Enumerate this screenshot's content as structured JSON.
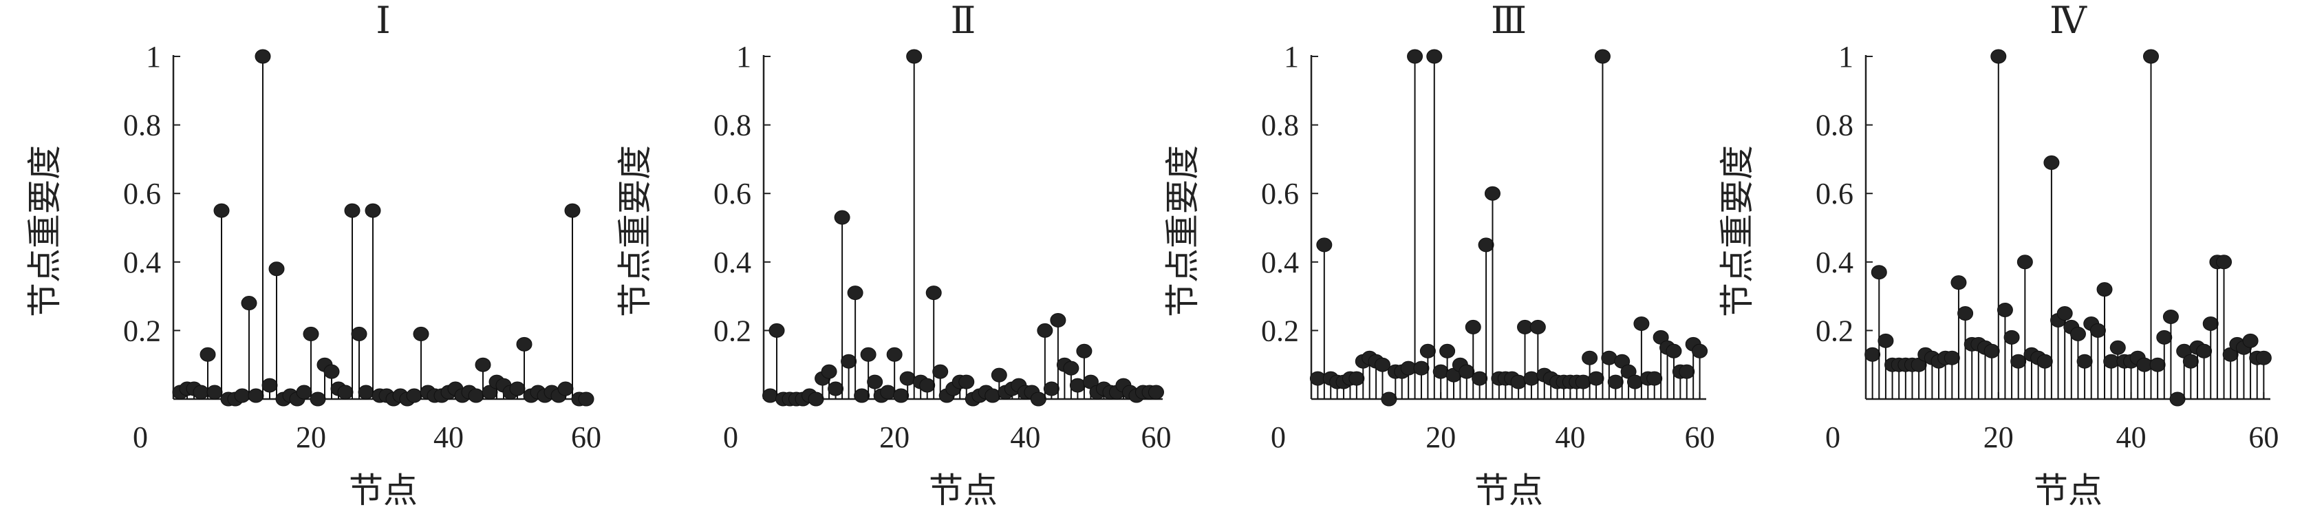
{
  "chart_data": [
    {
      "type": "stem",
      "title": "Ⅰ",
      "xlabel": "节点",
      "ylabel": "节点重要度",
      "xlim": [
        0,
        61
      ],
      "ylim": [
        0,
        1
      ],
      "xticks": [
        "0",
        "20",
        "40",
        "60"
      ],
      "yticks": [
        "0.2",
        "0.4",
        "0.6",
        "0.8",
        "1"
      ],
      "grid": false,
      "x": [
        1,
        2,
        3,
        4,
        5,
        6,
        7,
        8,
        9,
        10,
        11,
        12,
        13,
        14,
        15,
        16,
        17,
        18,
        19,
        20,
        21,
        22,
        23,
        24,
        25,
        26,
        27,
        28,
        29,
        30,
        31,
        32,
        33,
        34,
        35,
        36,
        37,
        38,
        39,
        40,
        41,
        42,
        43,
        44,
        45,
        46,
        47,
        48,
        49,
        50,
        51,
        52,
        53,
        54,
        55,
        56,
        57,
        58,
        59,
        60
      ],
      "values": [
        0.02,
        0.03,
        0.03,
        0.02,
        0.13,
        0.02,
        0.55,
        0,
        0,
        0.01,
        0.28,
        0.01,
        1.0,
        0.04,
        0.38,
        0,
        0.01,
        0,
        0.02,
        0.19,
        0,
        0.1,
        0.08,
        0.03,
        0.02,
        0.55,
        0.19,
        0.02,
        0.55,
        0.01,
        0.01,
        0,
        0.01,
        0,
        0.01,
        0.19,
        0.02,
        0.01,
        0.01,
        0.02,
        0.03,
        0.01,
        0.02,
        0.01,
        0.1,
        0.02,
        0.05,
        0.04,
        0.02,
        0.03,
        0.16,
        0.01,
        0.02,
        0.01,
        0.02,
        0.01,
        0.03,
        0.55,
        0,
        0
      ]
    },
    {
      "type": "stem",
      "title": "Ⅱ",
      "xlabel": "节点",
      "ylabel": "节点重要度",
      "xlim": [
        0,
        61
      ],
      "ylim": [
        0,
        1
      ],
      "xticks": [
        "0",
        "20",
        "40",
        "60"
      ],
      "yticks": [
        "0.2",
        "0.4",
        "0.6",
        "0.8",
        "1"
      ],
      "grid": false,
      "x": [
        1,
        2,
        3,
        4,
        5,
        6,
        7,
        8,
        9,
        10,
        11,
        12,
        13,
        14,
        15,
        16,
        17,
        18,
        19,
        20,
        21,
        22,
        23,
        24,
        25,
        26,
        27,
        28,
        29,
        30,
        31,
        32,
        33,
        34,
        35,
        36,
        37,
        38,
        39,
        40,
        41,
        42,
        43,
        44,
        45,
        46,
        47,
        48,
        49,
        50,
        51,
        52,
        53,
        54,
        55,
        56,
        57,
        58,
        59,
        60
      ],
      "values": [
        0.01,
        0.2,
        0,
        0,
        0,
        0,
        0.01,
        0,
        0.06,
        0.08,
        0.03,
        0.53,
        0.11,
        0.31,
        0.01,
        0.13,
        0.05,
        0.01,
        0.02,
        0.13,
        0.01,
        0.06,
        1.0,
        0.05,
        0.04,
        0.31,
        0.08,
        0.01,
        0.03,
        0.05,
        0.05,
        0,
        0.01,
        0.02,
        0.01,
        0.07,
        0.02,
        0.03,
        0.04,
        0.02,
        0.02,
        0,
        0.2,
        0.03,
        0.23,
        0.1,
        0.09,
        0.04,
        0.14,
        0.05,
        0.02,
        0.03,
        0.02,
        0.02,
        0.04,
        0.02,
        0.01,
        0.02,
        0.02,
        0.02
      ]
    },
    {
      "type": "stem",
      "title": "Ⅲ",
      "xlabel": "节点",
      "ylabel": "节点重要度",
      "xlim": [
        0,
        61
      ],
      "ylim": [
        0,
        1
      ],
      "xticks": [
        "0",
        "20",
        "40",
        "60"
      ],
      "yticks": [
        "0.2",
        "0.4",
        "0.6",
        "0.8",
        "1"
      ],
      "grid": false,
      "x": [
        1,
        2,
        3,
        4,
        5,
        6,
        7,
        8,
        9,
        10,
        11,
        12,
        13,
        14,
        15,
        16,
        17,
        18,
        19,
        20,
        21,
        22,
        23,
        24,
        25,
        26,
        27,
        28,
        29,
        30,
        31,
        32,
        33,
        34,
        35,
        36,
        37,
        38,
        39,
        40,
        41,
        42,
        43,
        44,
        45,
        46,
        47,
        48,
        49,
        50,
        51,
        52,
        53,
        54,
        55,
        56,
        57,
        58,
        59,
        60
      ],
      "values": [
        0.06,
        0.45,
        0.06,
        0.05,
        0.05,
        0.06,
        0.06,
        0.11,
        0.12,
        0.11,
        0.1,
        0,
        0.08,
        0.08,
        0.09,
        1.0,
        0.09,
        0.14,
        1.0,
        0.08,
        0.14,
        0.07,
        0.1,
        0.08,
        0.21,
        0.06,
        0.45,
        0.6,
        0.06,
        0.06,
        0.06,
        0.05,
        0.21,
        0.06,
        0.21,
        0.07,
        0.06,
        0.05,
        0.05,
        0.05,
        0.05,
        0.05,
        0.12,
        0.06,
        1.0,
        0.12,
        0.05,
        0.11,
        0.08,
        0.05,
        0.22,
        0.06,
        0.06,
        0.18,
        0.15,
        0.14,
        0.08,
        0.08,
        0.16,
        0.14
      ]
    },
    {
      "type": "stem",
      "title": "Ⅳ",
      "xlabel": "节点",
      "ylabel": "节点重要度",
      "xlim": [
        0,
        61
      ],
      "ylim": [
        0,
        1
      ],
      "xticks": [
        "0",
        "20",
        "40",
        "60"
      ],
      "yticks": [
        "0.2",
        "0.4",
        "0.6",
        "0.8",
        "1"
      ],
      "grid": false,
      "x": [
        1,
        2,
        3,
        4,
        5,
        6,
        7,
        8,
        9,
        10,
        11,
        12,
        13,
        14,
        15,
        16,
        17,
        18,
        19,
        20,
        21,
        22,
        23,
        24,
        25,
        26,
        27,
        28,
        29,
        30,
        31,
        32,
        33,
        34,
        35,
        36,
        37,
        38,
        39,
        40,
        41,
        42,
        43,
        44,
        45,
        46,
        47,
        48,
        49,
        50,
        51,
        52,
        53,
        54,
        55,
        56,
        57,
        58,
        59,
        60
      ],
      "values": [
        0.13,
        0.37,
        0.17,
        0.1,
        0.1,
        0.1,
        0.1,
        0.1,
        0.13,
        0.12,
        0.11,
        0.12,
        0.12,
        0.34,
        0.25,
        0.16,
        0.16,
        0.15,
        0.14,
        1.0,
        0.26,
        0.18,
        0.11,
        0.4,
        0.13,
        0.12,
        0.11,
        0.69,
        0.23,
        0.25,
        0.21,
        0.19,
        0.11,
        0.22,
        0.2,
        0.32,
        0.11,
        0.15,
        0.11,
        0.11,
        0.12,
        0.1,
        1.0,
        0.1,
        0.18,
        0.24,
        0,
        0.14,
        0.11,
        0.15,
        0.14,
        0.22,
        0.4,
        0.4,
        0.13,
        0.16,
        0.15,
        0.17,
        0.12,
        0.12
      ]
    }
  ]
}
